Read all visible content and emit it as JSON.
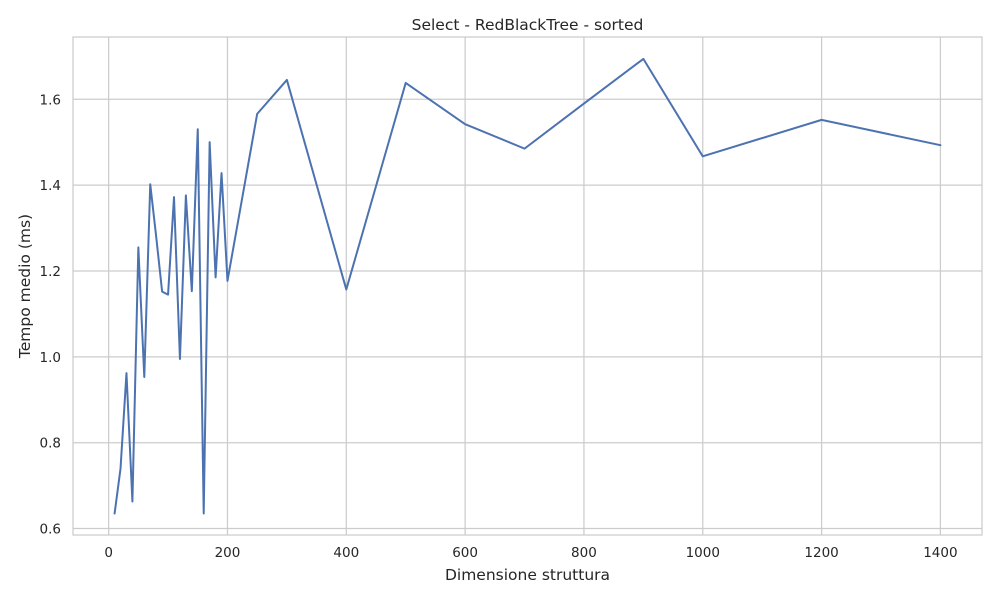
{
  "chart_data": {
    "type": "line",
    "title": "Select - RedBlackTree - sorted",
    "xlabel": "Dimensione struttura",
    "ylabel": "Tempo medio (ms)",
    "xlim": [
      -60,
      1470
    ],
    "ylim": [
      0.585,
      1.745
    ],
    "xticks": [
      0,
      200,
      400,
      600,
      800,
      1000,
      1200,
      1400
    ],
    "yticks": [
      0.6,
      0.8,
      1.0,
      1.2,
      1.4,
      1.6
    ],
    "xtick_labels": [
      "0",
      "200",
      "400",
      "600",
      "800",
      "1000",
      "1200",
      "1400"
    ],
    "ytick_labels": [
      "0.6",
      "0.8",
      "1.0",
      "1.2",
      "1.4",
      "1.6"
    ],
    "grid": true,
    "series": [
      {
        "color": "#4c72b0",
        "x": [
          10,
          20,
          30,
          40,
          50,
          60,
          70,
          80,
          90,
          100,
          110,
          120,
          130,
          140,
          150,
          160,
          170,
          180,
          190,
          200,
          250,
          300,
          400,
          500,
          600,
          700,
          800,
          900,
          1000,
          1200,
          1400
        ],
        "y": [
          0.635,
          0.74,
          0.962,
          0.663,
          1.255,
          0.953,
          1.402,
          1.28,
          1.152,
          1.145,
          1.372,
          0.995,
          1.376,
          1.153,
          1.53,
          0.635,
          1.5,
          1.185,
          1.428,
          1.177,
          1.566,
          1.645,
          1.157,
          1.638,
          1.542,
          1.485,
          1.59,
          1.694,
          1.467,
          1.552,
          1.493
        ]
      }
    ]
  }
}
